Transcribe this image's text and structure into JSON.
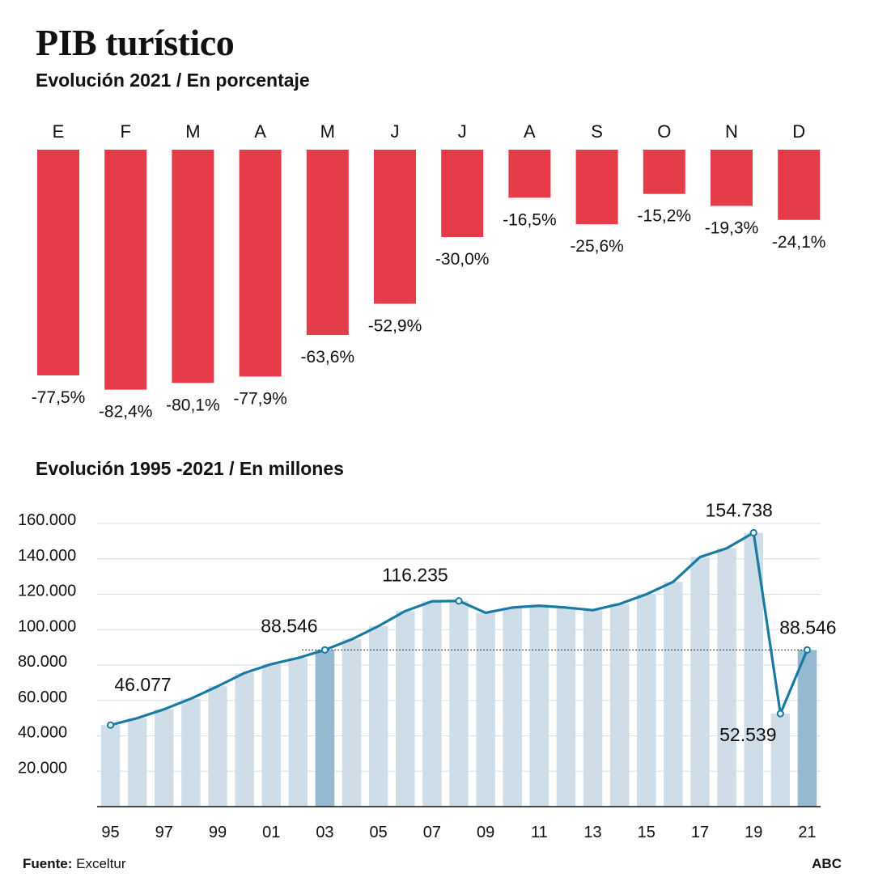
{
  "title": "PIB turístico",
  "chart_data": [
    {
      "type": "bar",
      "subtitle": "Evolución 2021 / En porcentaje",
      "categories": [
        "E",
        "F",
        "M",
        "A",
        "M",
        "J",
        "J",
        "A",
        "S",
        "O",
        "N",
        "D"
      ],
      "values": [
        -77.5,
        -82.4,
        -80.1,
        -77.9,
        -63.6,
        -52.9,
        -30.0,
        -16.5,
        -25.6,
        -15.2,
        -19.3,
        -24.1
      ],
      "value_labels": [
        "-77,5%",
        "-82,4%",
        "-80,1%",
        "-77,9%",
        "-63,6%",
        "-52,9%",
        "-30,0%",
        "-16,5%",
        "-25,6%",
        "-15,2%",
        "-19,3%",
        "-24,1%"
      ],
      "color": "#e63c4a"
    },
    {
      "type": "line",
      "subtitle": "Evolución 1995 -2021 / En millones",
      "x": [
        1995,
        1996,
        1997,
        1998,
        1999,
        2000,
        2001,
        2002,
        2003,
        2004,
        2005,
        2006,
        2007,
        2008,
        2009,
        2010,
        2011,
        2012,
        2013,
        2014,
        2015,
        2016,
        2017,
        2018,
        2019,
        2020,
        2021
      ],
      "values": [
        46077,
        50000,
        55000,
        61000,
        68000,
        75500,
        80500,
        84000,
        88546,
        94500,
        102000,
        110500,
        116000,
        116235,
        109500,
        112500,
        113500,
        112500,
        111000,
        114500,
        120000,
        127000,
        141000,
        146000,
        154738,
        52539,
        88546
      ],
      "x_tick_labels": [
        "95",
        "97",
        "99",
        "01",
        "03",
        "05",
        "07",
        "09",
        "11",
        "13",
        "15",
        "17",
        "19",
        "21"
      ],
      "y_tick_labels": [
        "20.000",
        "40.000",
        "60.000",
        "80.000",
        "100.000",
        "120.000",
        "140.000",
        "160.000"
      ],
      "ylim": [
        0,
        160000
      ],
      "annotations": [
        {
          "year": 1995,
          "label": "46.077"
        },
        {
          "year": 2003,
          "label": "88.546"
        },
        {
          "year": 2008,
          "label": "116.235"
        },
        {
          "year": 2019,
          "label": "154.738"
        },
        {
          "year": 2020,
          "label": "52.539"
        },
        {
          "year": 2021,
          "label": "88.546"
        }
      ],
      "highlighted_years": [
        2003,
        2021
      ],
      "reference_line_value": 88546,
      "line_color": "#1a7aa3",
      "bar_color": "#cfdde8",
      "highlight_bar_color": "#95b9d1"
    }
  ],
  "footer": {
    "source_label": "Fuente:",
    "source_value": "Exceltur",
    "brand": "ABC"
  }
}
